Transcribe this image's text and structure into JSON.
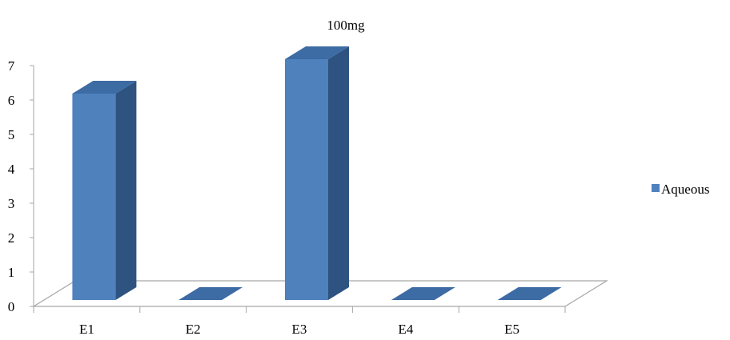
{
  "chart_data": {
    "type": "bar",
    "title": "100mg",
    "xlabel": "",
    "ylabel": "",
    "categories": [
      "E1",
      "E2",
      "E3",
      "E4",
      "E5"
    ],
    "series": [
      {
        "name": "Aqueous",
        "values": [
          6,
          0,
          7,
          0,
          0
        ],
        "color": "#4F81BD"
      }
    ],
    "ylim": [
      0,
      7
    ],
    "yticks": [
      0,
      1,
      2,
      3,
      4,
      5,
      6,
      7
    ],
    "grid": false,
    "legend_position": "right",
    "three_d": true
  }
}
